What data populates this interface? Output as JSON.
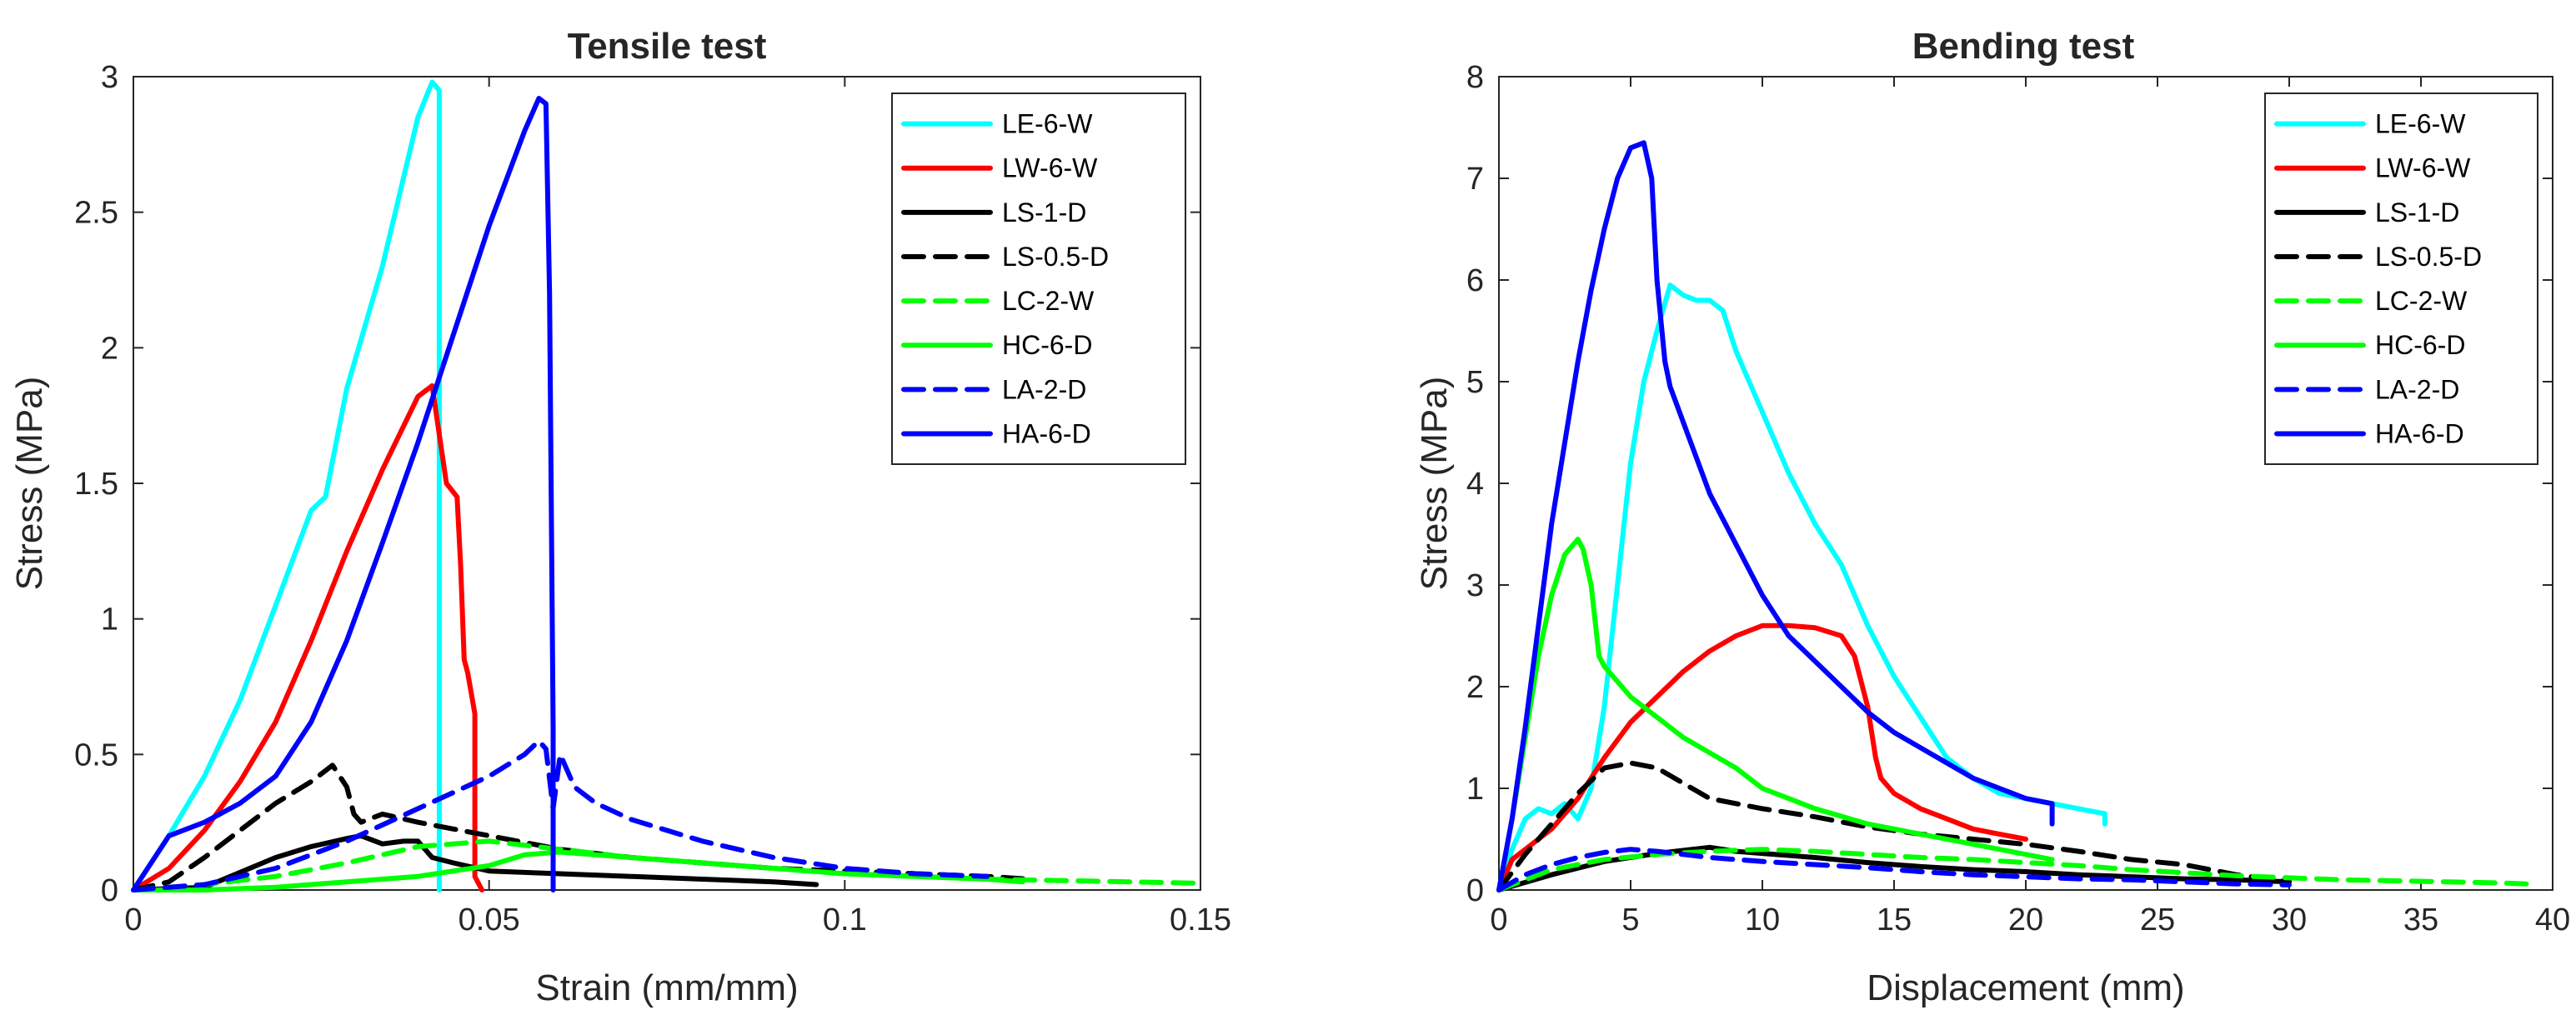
{
  "chart_data": [
    {
      "type": "line",
      "title": "Tensile test",
      "xlabel": "Strain (mm/mm)",
      "ylabel": "Stress (MPa)",
      "xlim": [
        0,
        0.15
      ],
      "ylim": [
        0,
        3
      ],
      "xticks": [
        0,
        0.05,
        0.1,
        0.15
      ],
      "xtick_labels": [
        "0",
        "0.05",
        "0.1",
        "0.15"
      ],
      "yticks": [
        0,
        0.5,
        1,
        1.5,
        2,
        2.5,
        3
      ],
      "ytick_labels": [
        "0",
        "0.5",
        "1",
        "1.5",
        "2",
        "2.5",
        "3"
      ],
      "grid": false,
      "legend_position": "top-right",
      "series": [
        {
          "name": "LE-6-W",
          "color": "#00ffff",
          "dash": "solid",
          "x": [
            0,
            0.005,
            0.01,
            0.015,
            0.02,
            0.025,
            0.027,
            0.03,
            0.035,
            0.04,
            0.042,
            0.043,
            0.043
          ],
          "y": [
            0,
            0.2,
            0.42,
            0.7,
            1.05,
            1.4,
            1.45,
            1.85,
            2.3,
            2.85,
            2.98,
            2.95,
            0
          ]
        },
        {
          "name": "LW-6-W",
          "color": "#ff0000",
          "dash": "solid",
          "x": [
            0,
            0.005,
            0.01,
            0.015,
            0.02,
            0.025,
            0.03,
            0.035,
            0.04,
            0.042,
            0.044,
            0.0455,
            0.046,
            0.0465,
            0.047,
            0.048,
            0.048,
            0.049
          ],
          "y": [
            0,
            0.08,
            0.22,
            0.4,
            0.62,
            0.92,
            1.25,
            1.55,
            1.82,
            1.86,
            1.5,
            1.45,
            1.2,
            0.85,
            0.8,
            0.65,
            0.05,
            0
          ]
        },
        {
          "name": "LS-1-D",
          "color": "#000000",
          "dash": "solid",
          "x": [
            0,
            0.01,
            0.02,
            0.025,
            0.03,
            0.032,
            0.035,
            0.038,
            0.04,
            0.042,
            0.045,
            0.05,
            0.06,
            0.07,
            0.08,
            0.09,
            0.096
          ],
          "y": [
            0,
            0.01,
            0.12,
            0.16,
            0.19,
            0.2,
            0.17,
            0.18,
            0.18,
            0.12,
            0.1,
            0.07,
            0.06,
            0.05,
            0.04,
            0.03,
            0.02
          ]
        },
        {
          "name": "LS-0.5-D",
          "color": "#000000",
          "dash": "dash",
          "x": [
            0,
            0.005,
            0.01,
            0.015,
            0.02,
            0.025,
            0.028,
            0.03,
            0.031,
            0.032,
            0.035,
            0.04,
            0.05,
            0.06,
            0.07,
            0.08,
            0.09,
            0.1,
            0.11,
            0.12,
            0.126
          ],
          "y": [
            0,
            0.03,
            0.12,
            0.22,
            0.32,
            0.4,
            0.46,
            0.38,
            0.28,
            0.25,
            0.28,
            0.25,
            0.2,
            0.15,
            0.12,
            0.1,
            0.08,
            0.07,
            0.06,
            0.05,
            0.04
          ]
        },
        {
          "name": "LC-2-W",
          "color": "#00ff00",
          "dash": "dash",
          "x": [
            0,
            0.01,
            0.02,
            0.03,
            0.04,
            0.05,
            0.06,
            0.07,
            0.08,
            0.09,
            0.1,
            0.11,
            0.12,
            0.13,
            0.14,
            0.15
          ],
          "y": [
            0,
            0.02,
            0.05,
            0.1,
            0.16,
            0.18,
            0.15,
            0.12,
            0.1,
            0.08,
            0.06,
            0.05,
            0.04,
            0.035,
            0.03,
            0.025
          ]
        },
        {
          "name": "HC-6-D",
          "color": "#00ff00",
          "dash": "solid",
          "x": [
            0,
            0.01,
            0.02,
            0.03,
            0.04,
            0.05,
            0.055,
            0.06,
            0.065,
            0.07,
            0.08,
            0.09,
            0.1,
            0.11,
            0.12,
            0.125
          ],
          "y": [
            0,
            0,
            0.01,
            0.03,
            0.05,
            0.09,
            0.13,
            0.14,
            0.13,
            0.12,
            0.1,
            0.08,
            0.06,
            0.05,
            0.04,
            0.03
          ]
        },
        {
          "name": "LA-2-D",
          "color": "#0000ff",
          "dash": "dash",
          "x": [
            0,
            0.01,
            0.02,
            0.03,
            0.04,
            0.05,
            0.055,
            0.057,
            0.058,
            0.059,
            0.06,
            0.062,
            0.065,
            0.07,
            0.08,
            0.09,
            0.1,
            0.11,
            0.12
          ],
          "y": [
            0,
            0.02,
            0.08,
            0.18,
            0.3,
            0.42,
            0.5,
            0.55,
            0.52,
            0.3,
            0.5,
            0.38,
            0.32,
            0.26,
            0.18,
            0.12,
            0.08,
            0.06,
            0.05
          ]
        },
        {
          "name": "HA-6-D",
          "color": "#0000ff",
          "dash": "solid",
          "x": [
            0,
            0.003,
            0.005,
            0.01,
            0.015,
            0.02,
            0.025,
            0.03,
            0.035,
            0.04,
            0.045,
            0.05,
            0.055,
            0.057,
            0.058,
            0.0585,
            0.059,
            0.059
          ],
          "y": [
            0,
            0.12,
            0.2,
            0.25,
            0.32,
            0.42,
            0.62,
            0.92,
            1.28,
            1.65,
            2.05,
            2.45,
            2.8,
            2.92,
            2.9,
            2.2,
            0.6,
            0
          ]
        }
      ]
    },
    {
      "type": "line",
      "title": "Bending test",
      "xlabel": "Displacement (mm)",
      "ylabel": "Stress (MPa)",
      "xlim": [
        0,
        40
      ],
      "ylim": [
        0,
        8
      ],
      "xticks": [
        0,
        5,
        10,
        15,
        20,
        25,
        30,
        35,
        40
      ],
      "xtick_labels": [
        "0",
        "5",
        "10",
        "15",
        "20",
        "25",
        "30",
        "35",
        "40"
      ],
      "yticks": [
        0,
        1,
        2,
        3,
        4,
        5,
        6,
        7,
        8
      ],
      "ytick_labels": [
        "0",
        "1",
        "2",
        "3",
        "4",
        "5",
        "6",
        "7",
        "8"
      ],
      "grid": false,
      "legend_position": "top-right",
      "series": [
        {
          "name": "LE-6-W",
          "color": "#00ffff",
          "dash": "solid",
          "x": [
            0,
            0.5,
            1,
            1.5,
            2,
            2.5,
            3,
            3.5,
            4,
            4.5,
            5,
            5.5,
            6,
            6.5,
            7,
            7.5,
            8,
            8.5,
            9,
            10,
            11,
            12,
            13,
            14,
            15,
            16,
            17,
            18,
            19,
            20,
            21,
            22,
            23,
            23
          ],
          "y": [
            0,
            0.4,
            0.7,
            0.8,
            0.75,
            0.85,
            0.7,
            1.0,
            1.8,
            3.0,
            4.2,
            5.0,
            5.5,
            5.95,
            5.85,
            5.8,
            5.8,
            5.7,
            5.3,
            4.7,
            4.1,
            3.6,
            3.2,
            2.6,
            2.1,
            1.7,
            1.3,
            1.1,
            0.95,
            0.9,
            0.85,
            0.8,
            0.75,
            0.65
          ]
        },
        {
          "name": "LW-6-W",
          "color": "#ff0000",
          "dash": "solid",
          "x": [
            0,
            0.5,
            1,
            1.5,
            2,
            3,
            4,
            5,
            6,
            7,
            8,
            9,
            10,
            11,
            12,
            13,
            13.5,
            14,
            14.3,
            14.5,
            15,
            16,
            17,
            18,
            19,
            20
          ],
          "y": [
            0,
            0.3,
            0.4,
            0.5,
            0.6,
            0.9,
            1.3,
            1.65,
            1.9,
            2.15,
            2.35,
            2.5,
            2.6,
            2.6,
            2.58,
            2.5,
            2.3,
            1.8,
            1.3,
            1.1,
            0.95,
            0.8,
            0.7,
            0.6,
            0.55,
            0.5
          ]
        },
        {
          "name": "LS-1-D",
          "color": "#000000",
          "dash": "solid",
          "x": [
            0,
            2,
            4,
            6,
            8,
            9,
            10,
            12,
            14,
            16,
            18,
            20,
            22,
            24,
            26,
            28,
            30
          ],
          "y": [
            0,
            0.15,
            0.28,
            0.36,
            0.42,
            0.38,
            0.36,
            0.32,
            0.27,
            0.23,
            0.2,
            0.18,
            0.15,
            0.13,
            0.11,
            0.1,
            0.08
          ]
        },
        {
          "name": "LS-0.5-D",
          "color": "#000000",
          "dash": "dash",
          "x": [
            0,
            1,
            2,
            3,
            4,
            5,
            6,
            7,
            8,
            9,
            10,
            12,
            14,
            16,
            18,
            20,
            22,
            24,
            26,
            28,
            30
          ],
          "y": [
            0,
            0.35,
            0.65,
            0.95,
            1.2,
            1.25,
            1.2,
            1.05,
            0.9,
            0.85,
            0.8,
            0.72,
            0.62,
            0.55,
            0.5,
            0.45,
            0.38,
            0.3,
            0.25,
            0.15,
            0.08
          ]
        },
        {
          "name": "LC-2-W",
          "color": "#00ff00",
          "dash": "dash",
          "x": [
            0,
            2,
            4,
            6,
            8,
            10,
            12,
            14,
            16,
            18,
            20,
            22,
            24,
            26,
            28,
            30,
            32,
            34,
            36,
            38,
            39
          ],
          "y": [
            0,
            0.2,
            0.3,
            0.35,
            0.38,
            0.4,
            0.38,
            0.35,
            0.32,
            0.3,
            0.27,
            0.24,
            0.2,
            0.17,
            0.14,
            0.12,
            0.1,
            0.09,
            0.08,
            0.07,
            0.06
          ]
        },
        {
          "name": "HC-6-D",
          "color": "#00ff00",
          "dash": "solid",
          "x": [
            0,
            0.5,
            1,
            1.5,
            2,
            2.5,
            3,
            3.2,
            3.5,
            3.8,
            4,
            5,
            6,
            7,
            8,
            9,
            10,
            11,
            12,
            14,
            16,
            18,
            20,
            21
          ],
          "y": [
            0,
            0.7,
            1.5,
            2.3,
            2.9,
            3.3,
            3.45,
            3.35,
            3.0,
            2.3,
            2.2,
            1.9,
            1.7,
            1.5,
            1.35,
            1.2,
            1.0,
            0.9,
            0.8,
            0.65,
            0.55,
            0.45,
            0.35,
            0.3
          ]
        },
        {
          "name": "LA-2-D",
          "color": "#0000ff",
          "dash": "dash",
          "x": [
            0,
            1,
            2,
            3,
            4,
            5,
            6,
            7,
            8,
            10,
            12,
            14,
            16,
            18,
            20,
            22,
            24,
            26,
            28,
            30
          ],
          "y": [
            0,
            0.15,
            0.25,
            0.32,
            0.37,
            0.4,
            0.38,
            0.35,
            0.32,
            0.28,
            0.25,
            0.22,
            0.18,
            0.15,
            0.13,
            0.11,
            0.1,
            0.08,
            0.06,
            0.05
          ]
        },
        {
          "name": "HA-6-D",
          "color": "#0000ff",
          "dash": "solid",
          "x": [
            0,
            0.5,
            1,
            1.5,
            2,
            2.5,
            3,
            3.5,
            4,
            4.5,
            5,
            5.5,
            5.8,
            6,
            6.3,
            6.5,
            7,
            8,
            9,
            10,
            11,
            12,
            13,
            14,
            15,
            16,
            17,
            18,
            19,
            20,
            21,
            21
          ],
          "y": [
            0,
            0.7,
            1.6,
            2.6,
            3.6,
            4.4,
            5.2,
            5.9,
            6.5,
            7.0,
            7.3,
            7.35,
            7.0,
            6.0,
            5.2,
            4.95,
            4.6,
            3.9,
            3.4,
            2.9,
            2.5,
            2.25,
            2.0,
            1.75,
            1.55,
            1.4,
            1.25,
            1.1,
            1.0,
            0.9,
            0.85,
            0.65
          ]
        }
      ]
    }
  ]
}
